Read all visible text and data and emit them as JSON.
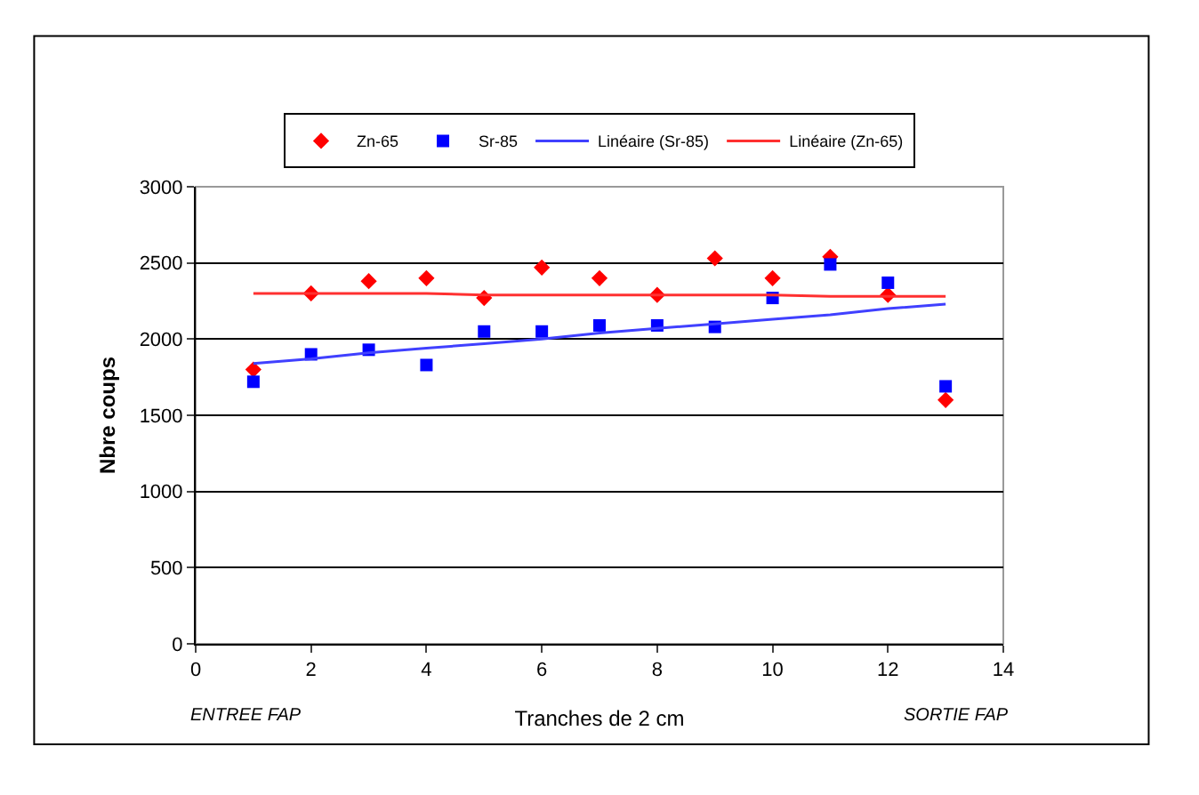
{
  "chart_data": {
    "type": "scatter",
    "xlabel": "Tranches de 2 cm",
    "ylabel": "Nbre coups",
    "x": [
      1,
      2,
      3,
      4,
      5,
      6,
      7,
      8,
      9,
      10,
      11,
      12,
      13
    ],
    "series": [
      {
        "name": "Zn-65",
        "color": "#ff0000",
        "marker": "diamond",
        "values": [
          1800,
          2300,
          2380,
          2400,
          2270,
          2470,
          2400,
          2290,
          2530,
          2400,
          2540,
          2290,
          1600
        ]
      },
      {
        "name": "Sr-85",
        "color": "#0000ff",
        "marker": "square",
        "values": [
          1720,
          1900,
          1930,
          1830,
          2050,
          2050,
          2090,
          2090,
          2080,
          2270,
          2490,
          2370,
          1690
        ]
      },
      {
        "name": "Linéaire (Sr-85)",
        "type": "line",
        "color": "#4040ff",
        "marker": "none",
        "values": [
          1840,
          1870,
          1910,
          1940,
          1970,
          2000,
          2040,
          2070,
          2100,
          2130,
          2160,
          2200,
          2230
        ]
      },
      {
        "name": "Linéaire (Zn-65)",
        "type": "line",
        "color": "#ff3030",
        "marker": "none",
        "values": [
          2300,
          2300,
          2300,
          2300,
          2290,
          2290,
          2290,
          2290,
          2290,
          2290,
          2280,
          2280,
          2280
        ]
      }
    ],
    "xlim": [
      0,
      14
    ],
    "xticks": [
      0,
      2,
      4,
      6,
      8,
      10,
      12,
      14
    ],
    "ylim": [
      0,
      3000
    ],
    "yticks": [
      0,
      500,
      1000,
      1500,
      2000,
      2500,
      3000
    ],
    "grid": "y",
    "legend": "top",
    "annotations": [
      "ENTREE FAP",
      "SORTIE FAP"
    ]
  }
}
